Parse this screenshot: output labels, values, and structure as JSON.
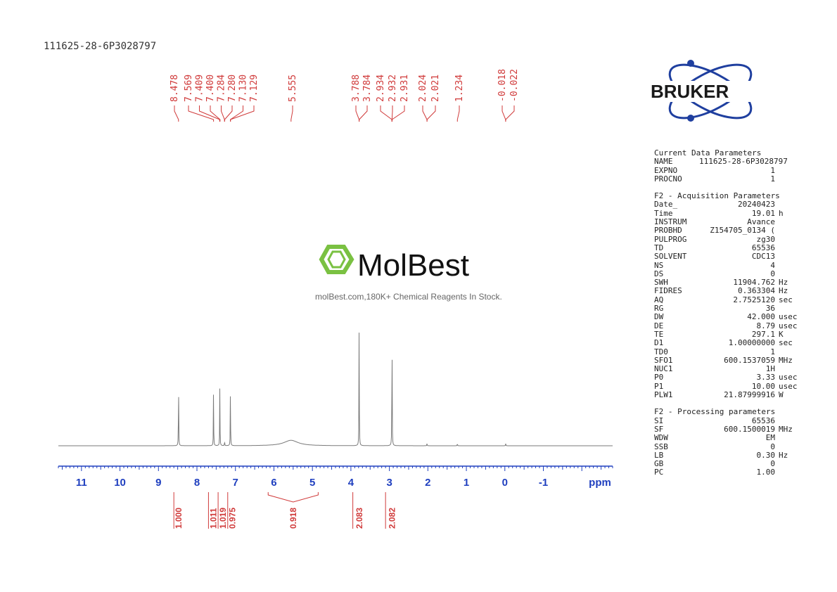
{
  "sample_title": "111625-28-6P3028797",
  "watermark": {
    "name": "MolBest",
    "tagline": "molBest.com,180K+ Chemical Reagents In Stock."
  },
  "logo": {
    "text": "BRUKER"
  },
  "colors": {
    "spectrum": "#7a7a7a",
    "peak_label": "#d03a3a",
    "axis": "#1f3fbf",
    "integral": "#d03a3a",
    "watermark_green": "#7ac142",
    "bruker_blue": "#1f3f9f"
  },
  "chart_data": {
    "type": "line",
    "title": "",
    "xlabel": "ppm",
    "x_reversed": true,
    "xlim": [
      11.6,
      -2.8
    ],
    "tick_labels": [
      "11",
      "10",
      "9",
      "8",
      "7",
      "6",
      "5",
      "4",
      "3",
      "2",
      "1",
      "0",
      "-1"
    ],
    "tick_values": [
      11,
      10,
      9,
      8,
      7,
      6,
      5,
      4,
      3,
      2,
      1,
      0,
      -1
    ],
    "peak_labels": [
      "8.478",
      "7.569",
      "7.409",
      "7.400",
      "7.284",
      "7.280",
      "7.130",
      "7.129",
      "5.555",
      "3.788",
      "3.784",
      "2.934",
      "2.932",
      "2.931",
      "2.024",
      "2.021",
      "1.234",
      "-0.018",
      "-0.022"
    ],
    "peaks": [
      {
        "ppm": 8.478,
        "height": 0.54
      },
      {
        "ppm": 7.569,
        "height": 0.43
      },
      {
        "ppm": 7.405,
        "height": 0.45
      },
      {
        "ppm": 7.282,
        "height": 0.04
      },
      {
        "ppm": 7.13,
        "height": 0.45
      },
      {
        "ppm": 5.555,
        "height": 0.04,
        "broad": true
      },
      {
        "ppm": 3.786,
        "height": 1.0
      },
      {
        "ppm": 2.932,
        "height": 1.0
      },
      {
        "ppm": 2.022,
        "height": 0.02
      },
      {
        "ppm": 1.234,
        "height": 0.02
      },
      {
        "ppm": -0.02,
        "height": 0.02
      }
    ],
    "integrals": [
      {
        "from": 8.6,
        "to": 8.35,
        "value": "1.000"
      },
      {
        "from": 7.7,
        "to": 7.45,
        "value": "1.011"
      },
      {
        "from": 7.45,
        "to": 7.2,
        "value": "1.019"
      },
      {
        "from": 7.2,
        "to": 6.95,
        "value": "0.975"
      },
      {
        "from": 6.15,
        "to": 4.85,
        "value": "0.918"
      },
      {
        "from": 3.95,
        "to": 3.6,
        "value": "2.083"
      },
      {
        "from": 3.1,
        "to": 2.75,
        "value": "2.082"
      }
    ]
  },
  "parameters": [
    {
      "heading": "Current Data Parameters",
      "rows": [
        {
          "key": "NAME",
          "value": "111625-28-6P3028797",
          "unit": ""
        },
        {
          "key": "EXPNO",
          "value": "1",
          "unit": ""
        },
        {
          "key": "PROCNO",
          "value": "1",
          "unit": ""
        }
      ]
    },
    {
      "heading": "F2 - Acquisition Parameters",
      "rows": [
        {
          "key": "Date_",
          "value": "20240423",
          "unit": ""
        },
        {
          "key": "Time",
          "value": "19.01",
          "unit": "h"
        },
        {
          "key": "INSTRUM",
          "value": "Avance",
          "unit": ""
        },
        {
          "key": "PROBHD",
          "value": "Z154705_0134 (",
          "unit": ""
        },
        {
          "key": "PULPROG",
          "value": "zg30",
          "unit": ""
        },
        {
          "key": "TD",
          "value": "65536",
          "unit": ""
        },
        {
          "key": "SOLVENT",
          "value": "CDC13",
          "unit": ""
        },
        {
          "key": "NS",
          "value": "4",
          "unit": ""
        },
        {
          "key": "DS",
          "value": "0",
          "unit": ""
        },
        {
          "key": "SWH",
          "value": "11904.762",
          "unit": "Hz"
        },
        {
          "key": "FIDRES",
          "value": "0.363304",
          "unit": "Hz"
        },
        {
          "key": "AQ",
          "value": "2.7525120",
          "unit": "sec"
        },
        {
          "key": "RG",
          "value": "36",
          "unit": ""
        },
        {
          "key": "DW",
          "value": "42.000",
          "unit": "usec"
        },
        {
          "key": "DE",
          "value": "8.79",
          "unit": "usec"
        },
        {
          "key": "TE",
          "value": "297.1",
          "unit": "K"
        },
        {
          "key": "D1",
          "value": "1.00000000",
          "unit": "sec"
        },
        {
          "key": "TD0",
          "value": "1",
          "unit": ""
        },
        {
          "key": "SFO1",
          "value": "600.1537059",
          "unit": "MHz"
        },
        {
          "key": "NUC1",
          "value": "1H",
          "unit": ""
        },
        {
          "key": "P0",
          "value": "3.33",
          "unit": "usec"
        },
        {
          "key": "P1",
          "value": "10.00",
          "unit": "usec"
        },
        {
          "key": "PLW1",
          "value": "21.87999916",
          "unit": "W"
        }
      ]
    },
    {
      "heading": "F2 - Processing parameters",
      "rows": [
        {
          "key": "SI",
          "value": "65536",
          "unit": ""
        },
        {
          "key": "SF",
          "value": "600.1500019",
          "unit": "MHz"
        },
        {
          "key": "WDW",
          "value": "EM",
          "unit": ""
        },
        {
          "key": "SSB",
          "value": "0",
          "unit": ""
        },
        {
          "key": "LB",
          "value": "0.30",
          "unit": "Hz"
        },
        {
          "key": "GB",
          "value": "0",
          "unit": ""
        },
        {
          "key": "PC",
          "value": "1.00",
          "unit": ""
        }
      ]
    }
  ]
}
